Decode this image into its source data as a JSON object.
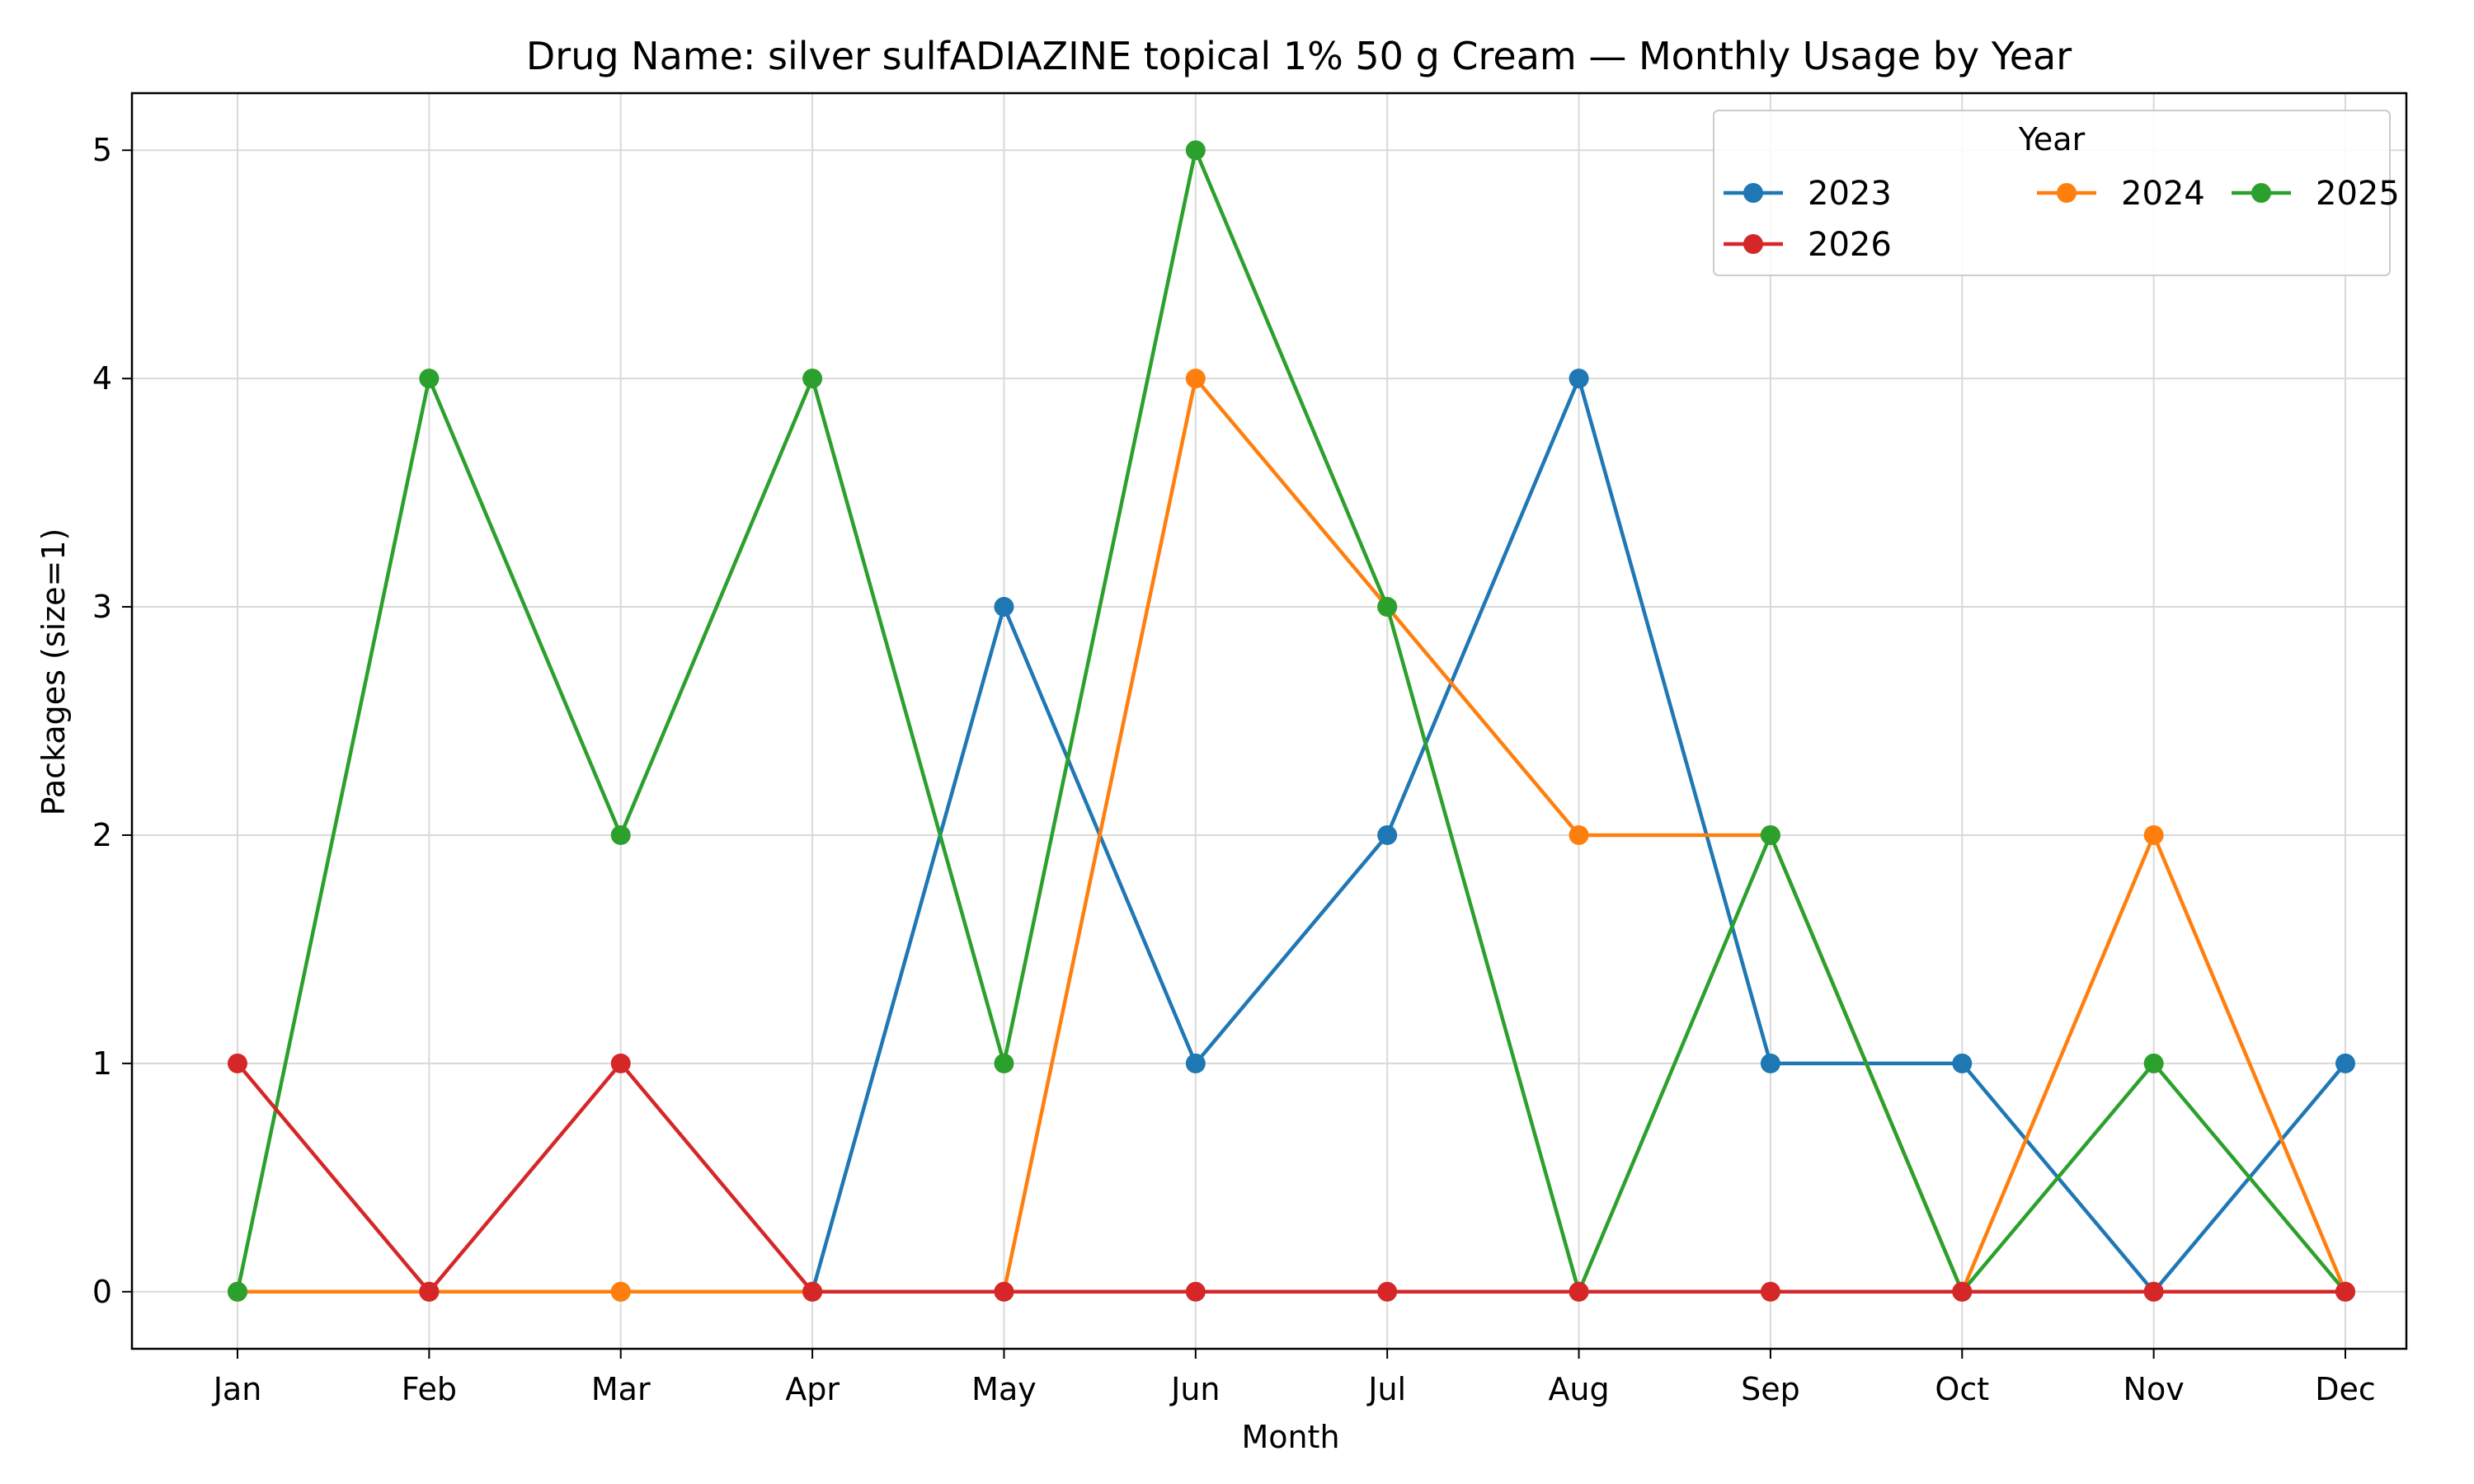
{
  "chart_data": {
    "type": "line",
    "title": "Drug Name: silver sulfADIAZINE topical 1% 50 g Cream — Monthly Usage by Year",
    "xlabel": "Month",
    "ylabel": "Packages (size=1)",
    "categories": [
      "Jan",
      "Feb",
      "Mar",
      "Apr",
      "May",
      "Jun",
      "Jul",
      "Aug",
      "Sep",
      "Oct",
      "Nov",
      "Dec"
    ],
    "ylim": [
      -0.25,
      5.25
    ],
    "yticks": [
      "0",
      "1",
      "2",
      "3",
      "4",
      "5"
    ],
    "grid": true,
    "legend": {
      "title": "Year",
      "placement": "top-right",
      "columns": 3
    },
    "series": [
      {
        "name": "2023",
        "color": "#1f77b4",
        "values": [
          0,
          0,
          0,
          0,
          3,
          1,
          2,
          4,
          1,
          1,
          0,
          1
        ]
      },
      {
        "name": "2024",
        "color": "#ff7f0e",
        "values": [
          0,
          0,
          0,
          0,
          0,
          4,
          3,
          2,
          2,
          0,
          2,
          0
        ]
      },
      {
        "name": "2025",
        "color": "#2ca02c",
        "values": [
          0,
          4,
          2,
          4,
          1,
          5,
          3,
          0,
          2,
          0,
          1,
          0
        ]
      },
      {
        "name": "2026",
        "color": "#d62728",
        "values": [
          1,
          0,
          1,
          0,
          0,
          0,
          0,
          0,
          0,
          0,
          0,
          0
        ]
      }
    ]
  }
}
